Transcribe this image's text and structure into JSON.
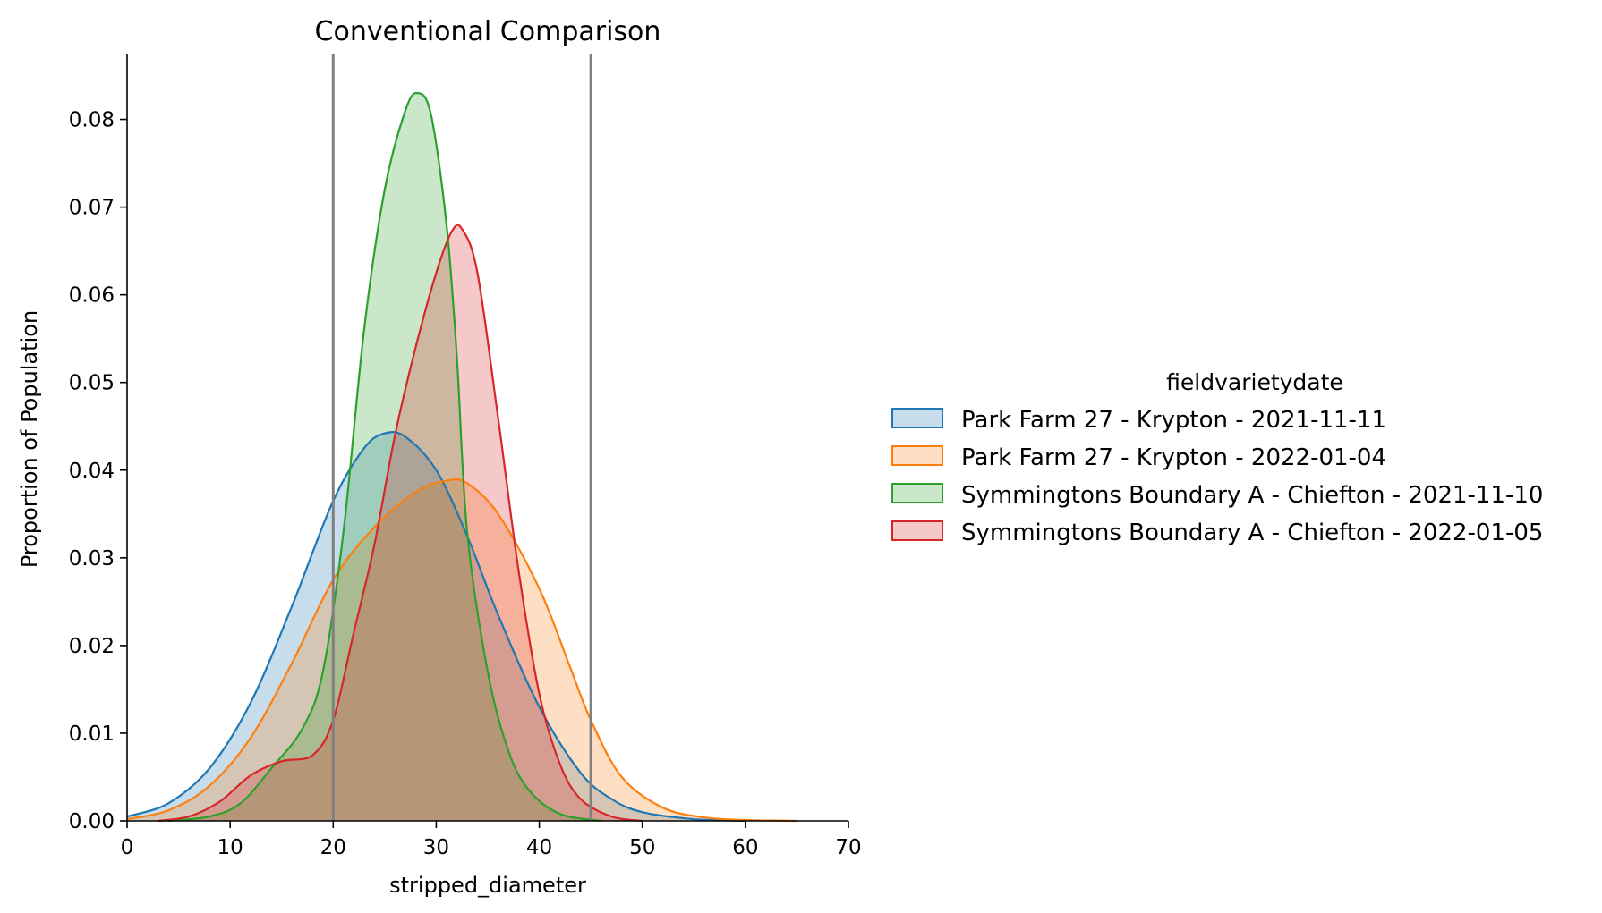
{
  "chart_data": {
    "type": "area",
    "title": "Conventional Comparison",
    "xlabel": "stripped_diameter",
    "ylabel": "Proportion of Population",
    "xlim": [
      0,
      70
    ],
    "ylim": [
      0,
      0.0875
    ],
    "x_ticks": [
      0,
      10,
      20,
      30,
      40,
      50,
      60,
      70
    ],
    "y_ticks": [
      0.0,
      0.01,
      0.02,
      0.03,
      0.04,
      0.05,
      0.06,
      0.07,
      0.08
    ],
    "x_tick_labels": [
      "0",
      "10",
      "20",
      "30",
      "40",
      "50",
      "60",
      "70"
    ],
    "y_tick_labels": [
      "0.00",
      "0.01",
      "0.02",
      "0.03",
      "0.04",
      "0.05",
      "0.06",
      "0.07",
      "0.08"
    ],
    "vertical_lines": [
      20,
      45
    ],
    "grid": false,
    "legend_title": "fieldvarietydate",
    "legend_position": "right",
    "series": [
      {
        "name": "Park Farm 27 - Krypton - 2021-11-11",
        "color": "#1f77b4",
        "points": [
          [
            0,
            0.0005
          ],
          [
            4,
            0.002
          ],
          [
            8,
            0.006
          ],
          [
            12,
            0.0135
          ],
          [
            16,
            0.0245
          ],
          [
            20,
            0.0365
          ],
          [
            23,
            0.0425
          ],
          [
            25,
            0.0442
          ],
          [
            27,
            0.0438
          ],
          [
            30,
            0.04
          ],
          [
            33,
            0.0325
          ],
          [
            36,
            0.0235
          ],
          [
            40,
            0.013
          ],
          [
            44,
            0.0055
          ],
          [
            47,
            0.0025
          ],
          [
            50,
            0.001
          ],
          [
            55,
            0.0002
          ],
          [
            60,
            0.0
          ]
        ]
      },
      {
        "name": "Park Farm 27 - Krypton - 2022-01-04",
        "color": "#ff7f0e",
        "points": [
          [
            0,
            0.0002
          ],
          [
            4,
            0.0012
          ],
          [
            8,
            0.004
          ],
          [
            12,
            0.0095
          ],
          [
            16,
            0.018
          ],
          [
            20,
            0.0275
          ],
          [
            24,
            0.0335
          ],
          [
            28,
            0.0375
          ],
          [
            31,
            0.0388
          ],
          [
            33,
            0.0385
          ],
          [
            36,
            0.035
          ],
          [
            40,
            0.0265
          ],
          [
            43,
            0.0175
          ],
          [
            45,
            0.0115
          ],
          [
            48,
            0.005
          ],
          [
            52,
            0.0015
          ],
          [
            56,
            0.0004
          ],
          [
            60,
            0.0001
          ],
          [
            65,
            0.0
          ]
        ]
      },
      {
        "name": "Symmingtons Boundary A - Chiefton - 2021-11-10",
        "color": "#2ca02c",
        "points": [
          [
            4,
            0.0
          ],
          [
            8,
            0.0005
          ],
          [
            11,
            0.002
          ],
          [
            14,
            0.006
          ],
          [
            17,
            0.0105
          ],
          [
            19,
            0.017
          ],
          [
            21,
            0.033
          ],
          [
            23,
            0.056
          ],
          [
            25,
            0.072
          ],
          [
            27,
            0.081
          ],
          [
            28.2,
            0.083
          ],
          [
            29.5,
            0.0805
          ],
          [
            31,
            0.068
          ],
          [
            32,
            0.053
          ],
          [
            33,
            0.033
          ],
          [
            35,
            0.017
          ],
          [
            37,
            0.008
          ],
          [
            39,
            0.0035
          ],
          [
            42,
            0.0008
          ],
          [
            46,
            0.0
          ]
        ]
      },
      {
        "name": "Symmingtons Boundary A - Chiefton - 2022-01-05",
        "color": "#d62728",
        "points": [
          [
            3,
            0.0
          ],
          [
            6,
            0.0005
          ],
          [
            9,
            0.0022
          ],
          [
            12,
            0.0052
          ],
          [
            15,
            0.0068
          ],
          [
            18,
            0.0075
          ],
          [
            20,
            0.0115
          ],
          [
            22,
            0.0215
          ],
          [
            24,
            0.0315
          ],
          [
            26,
            0.044
          ],
          [
            28,
            0.054
          ],
          [
            30,
            0.0625
          ],
          [
            31.5,
            0.0672
          ],
          [
            32.5,
            0.0675
          ],
          [
            34,
            0.0625
          ],
          [
            36,
            0.046
          ],
          [
            38,
            0.0285
          ],
          [
            40,
            0.0145
          ],
          [
            42,
            0.0065
          ],
          [
            44,
            0.0025
          ],
          [
            47,
            0.0005
          ],
          [
            50,
            0.0
          ]
        ]
      }
    ]
  }
}
